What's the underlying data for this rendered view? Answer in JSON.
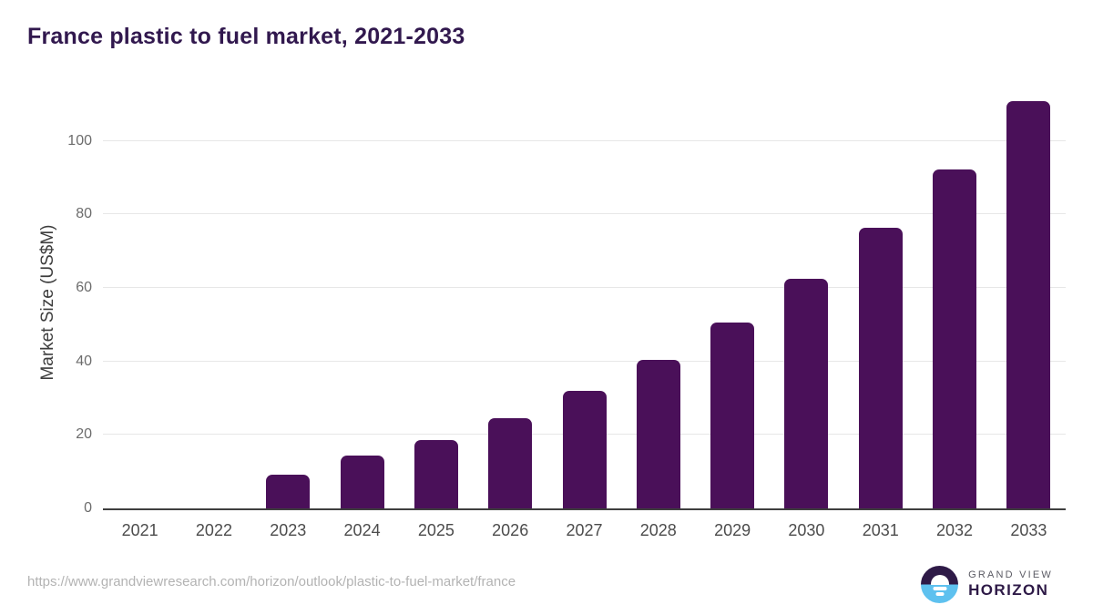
{
  "title": "France plastic to fuel market, 2021-2033",
  "chart_data": {
    "type": "bar",
    "categories": [
      "2021",
      "2022",
      "2023",
      "2024",
      "2025",
      "2026",
      "2027",
      "2028",
      "2029",
      "2030",
      "2031",
      "2032",
      "2033"
    ],
    "values": [
      0,
      0,
      9.3,
      14.3,
      18.6,
      24.6,
      32.0,
      40.5,
      50.5,
      62.5,
      76.3,
      92.3,
      110.8
    ],
    "title": "France plastic to fuel market, 2021-2033",
    "xlabel": "",
    "ylabel": "Market Size (US$M)",
    "ylim": [
      0,
      112.3
    ],
    "yticks": [
      0,
      20,
      40,
      60,
      80,
      100
    ],
    "grid": true,
    "legend": "none",
    "bar_color": "#4a1059"
  },
  "colors": {
    "title_purple": "#31184e",
    "bar_purple": "#4a1059",
    "gridline": "#e7e7e7",
    "axis_line": "#3f3f3f",
    "y_tick_text": "#6c6c6c",
    "x_tick_text": "#4c4c4c",
    "url_text": "#b3b3b3",
    "logo_blue": "#5ec1ef",
    "logo_dark": "#2e1a47"
  },
  "footer": {
    "url": "https://www.grandviewresearch.com/horizon/outlook/plastic-to-fuel-market/france",
    "logo": {
      "line1": "GRAND VIEW",
      "line2": "HORIZON"
    }
  }
}
